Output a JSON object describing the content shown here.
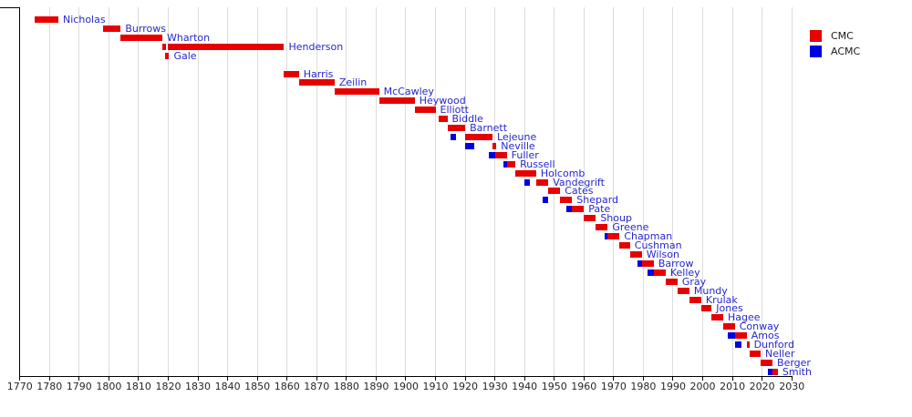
{
  "legend": {
    "items": [
      {
        "key": "cmc",
        "label": "CMC",
        "color": "#e60000"
      },
      {
        "key": "acmc",
        "label": "ACMC",
        "color": "#0000e0"
      }
    ]
  },
  "chart_data": {
    "type": "timeline",
    "title": "",
    "xlabel": "",
    "ylabel": "",
    "xlim": [
      1770,
      2030
    ],
    "x_tick_interval": 10,
    "x_ticks": [
      1770,
      1780,
      1790,
      1800,
      1810,
      1820,
      1830,
      1840,
      1850,
      1860,
      1870,
      1880,
      1890,
      1900,
      1910,
      1920,
      1930,
      1940,
      1950,
      1960,
      1970,
      1980,
      1990,
      2000,
      2010,
      2020,
      2030
    ],
    "grid": true,
    "legend_position": "top-right",
    "series_colors": {
      "CMC": "#e60000",
      "ACMC": "#0000e0"
    },
    "rows": [
      {
        "name": "Nicholas",
        "segments": [
          {
            "series": "CMC",
            "start": 1775,
            "end": 1783
          }
        ]
      },
      {
        "name": "Burrows",
        "segments": [
          {
            "series": "CMC",
            "start": 1798,
            "end": 1804
          }
        ]
      },
      {
        "name": "Wharton",
        "segments": [
          {
            "series": "CMC",
            "start": 1804,
            "end": 1818
          }
        ]
      },
      {
        "name": "Henderson",
        "segments": [
          {
            "series": "CMC",
            "start": 1818,
            "end": 1819.2
          },
          {
            "series": "CMC",
            "start": 1820,
            "end": 1859
          }
        ]
      },
      {
        "name": "Gale",
        "segments": [
          {
            "series": "CMC",
            "start": 1819,
            "end": 1820.3
          }
        ]
      },
      {
        "name": "",
        "segments": []
      },
      {
        "name": "Harris",
        "segments": [
          {
            "series": "CMC",
            "start": 1859,
            "end": 1864
          }
        ]
      },
      {
        "name": "Zeilin",
        "segments": [
          {
            "series": "CMC",
            "start": 1864,
            "end": 1876
          }
        ]
      },
      {
        "name": "McCawley",
        "segments": [
          {
            "series": "CMC",
            "start": 1876,
            "end": 1891
          }
        ]
      },
      {
        "name": "Heywood",
        "segments": [
          {
            "series": "CMC",
            "start": 1891,
            "end": 1903
          }
        ]
      },
      {
        "name": "Elliott",
        "segments": [
          {
            "series": "CMC",
            "start": 1903,
            "end": 1910
          }
        ]
      },
      {
        "name": "Biddle",
        "segments": [
          {
            "series": "CMC",
            "start": 1911,
            "end": 1914
          }
        ]
      },
      {
        "name": "Barnett",
        "segments": [
          {
            "series": "CMC",
            "start": 1914,
            "end": 1920
          }
        ]
      },
      {
        "name": "Lejeune",
        "segments": [
          {
            "series": "ACMC",
            "start": 1915,
            "end": 1917
          },
          {
            "series": "CMC",
            "start": 1920,
            "end": 1929.2
          }
        ]
      },
      {
        "name": "Neville",
        "segments": [
          {
            "series": "ACMC",
            "start": 1920,
            "end": 1923
          },
          {
            "series": "CMC",
            "start": 1929.2,
            "end": 1930.5
          }
        ]
      },
      {
        "name": "Fuller",
        "segments": [
          {
            "series": "ACMC",
            "start": 1928,
            "end": 1930
          },
          {
            "series": "CMC",
            "start": 1930,
            "end": 1934
          }
        ]
      },
      {
        "name": "Russell",
        "segments": [
          {
            "series": "ACMC",
            "start": 1933,
            "end": 1934
          },
          {
            "series": "CMC",
            "start": 1934,
            "end": 1936.9
          }
        ]
      },
      {
        "name": "Holcomb",
        "segments": [
          {
            "series": "CMC",
            "start": 1936.9,
            "end": 1943.9
          }
        ]
      },
      {
        "name": "Vandegrift",
        "segments": [
          {
            "series": "ACMC",
            "start": 1940,
            "end": 1941.9
          },
          {
            "series": "CMC",
            "start": 1944,
            "end": 1948
          }
        ]
      },
      {
        "name": "Cates",
        "segments": [
          {
            "series": "CMC",
            "start": 1948,
            "end": 1952
          }
        ]
      },
      {
        "name": "Shepard",
        "segments": [
          {
            "series": "ACMC",
            "start": 1946,
            "end": 1948
          },
          {
            "series": "CMC",
            "start": 1952,
            "end": 1956
          }
        ]
      },
      {
        "name": "Pate",
        "segments": [
          {
            "series": "ACMC",
            "start": 1954,
            "end": 1956
          },
          {
            "series": "CMC",
            "start": 1956,
            "end": 1960
          }
        ]
      },
      {
        "name": "Shoup",
        "segments": [
          {
            "series": "CMC",
            "start": 1960,
            "end": 1964
          }
        ]
      },
      {
        "name": "Greene",
        "segments": [
          {
            "series": "CMC",
            "start": 1964,
            "end": 1968
          }
        ]
      },
      {
        "name": "Chapman",
        "segments": [
          {
            "series": "ACMC",
            "start": 1967,
            "end": 1968
          },
          {
            "series": "CMC",
            "start": 1968,
            "end": 1972
          }
        ]
      },
      {
        "name": "Cushman",
        "segments": [
          {
            "series": "CMC",
            "start": 1972,
            "end": 1975.5
          }
        ]
      },
      {
        "name": "Wilson",
        "segments": [
          {
            "series": "CMC",
            "start": 1975.5,
            "end": 1979.5
          }
        ]
      },
      {
        "name": "Barrow",
        "segments": [
          {
            "series": "ACMC",
            "start": 1978,
            "end": 1979.5
          },
          {
            "series": "CMC",
            "start": 1979.5,
            "end": 1983.5
          }
        ]
      },
      {
        "name": "Kelley",
        "segments": [
          {
            "series": "ACMC",
            "start": 1981.5,
            "end": 1983.5
          },
          {
            "series": "CMC",
            "start": 1983.5,
            "end": 1987.5
          }
        ]
      },
      {
        "name": "Gray",
        "segments": [
          {
            "series": "CMC",
            "start": 1987.5,
            "end": 1991.5
          }
        ]
      },
      {
        "name": "Mundy",
        "segments": [
          {
            "series": "CMC",
            "start": 1991.5,
            "end": 1995.5
          }
        ]
      },
      {
        "name": "Krulak",
        "segments": [
          {
            "series": "CMC",
            "start": 1995.5,
            "end": 1999.5
          }
        ]
      },
      {
        "name": "Jones",
        "segments": [
          {
            "series": "CMC",
            "start": 1999.5,
            "end": 2003
          }
        ]
      },
      {
        "name": "Hagee",
        "segments": [
          {
            "series": "CMC",
            "start": 2003,
            "end": 2006.9
          }
        ]
      },
      {
        "name": "Conway",
        "segments": [
          {
            "series": "CMC",
            "start": 2006.9,
            "end": 2010.8
          }
        ]
      },
      {
        "name": "Amos",
        "segments": [
          {
            "series": "ACMC",
            "start": 2008.5,
            "end": 2010.8
          },
          {
            "series": "CMC",
            "start": 2010.8,
            "end": 2014.8
          }
        ]
      },
      {
        "name": "Dunford",
        "segments": [
          {
            "series": "ACMC",
            "start": 2010.8,
            "end": 2012.9
          },
          {
            "series": "CMC",
            "start": 2014.8,
            "end": 2015.7
          }
        ]
      },
      {
        "name": "Neller",
        "segments": [
          {
            "series": "CMC",
            "start": 2015.7,
            "end": 2019.5
          }
        ]
      },
      {
        "name": "Berger",
        "segments": [
          {
            "series": "CMC",
            "start": 2019.5,
            "end": 2023.5
          }
        ]
      },
      {
        "name": "Smith",
        "segments": [
          {
            "series": "ACMC",
            "start": 2021.8,
            "end": 2023.5
          },
          {
            "series": "CMC",
            "start": 2023.5,
            "end": 2025.3
          }
        ]
      }
    ]
  }
}
